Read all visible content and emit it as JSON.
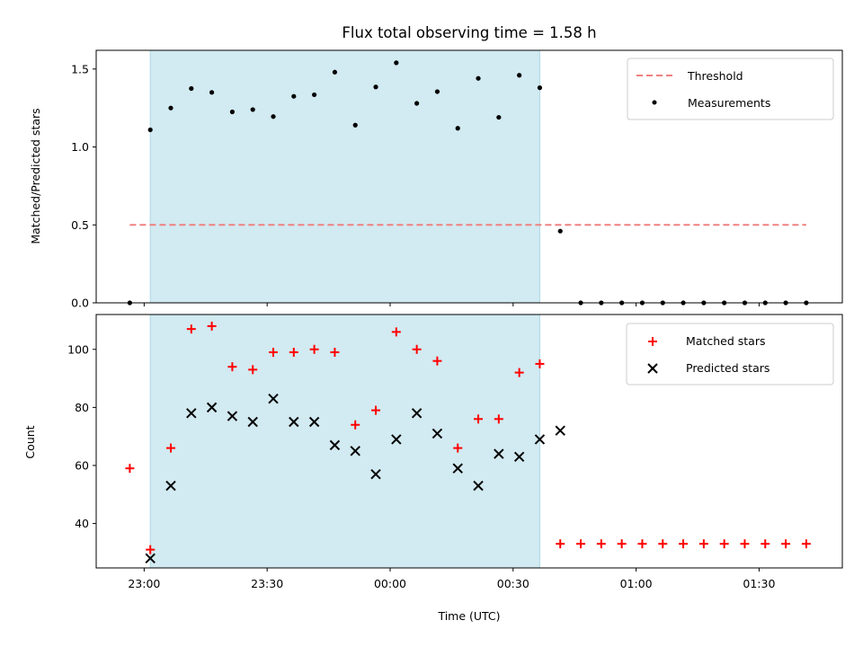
{
  "chart_data": [
    {
      "type": "scatter",
      "title": "Flux total observing time = 1.58 h",
      "xlabel": "",
      "ylabel": "Matched/Predicted stars",
      "ylim": [
        0,
        1.62
      ],
      "yticks": [
        0.0,
        0.5,
        1.0,
        1.5
      ],
      "ytick_labels": [
        "0.0",
        "0.5",
        "1.0",
        "1.5"
      ],
      "legend_position": "top-right",
      "threshold": {
        "name": "Threshold",
        "value": 0.5,
        "x_start": -3.5,
        "x_end": 161.5,
        "color": "#f08080"
      },
      "observing_window": {
        "start": 1.5,
        "end": 96.5,
        "color": "#add8e6"
      },
      "series": [
        {
          "name": "Measurements",
          "color": "#000000",
          "x": [
            -3.5,
            1.5,
            6.5,
            11.5,
            16.5,
            21.5,
            26.5,
            31.5,
            36.5,
            41.5,
            46.5,
            51.5,
            56.5,
            61.5,
            66.5,
            71.5,
            76.5,
            81.5,
            86.5,
            91.5,
            96.5,
            101.5,
            106.5,
            111.5,
            116.5,
            121.5,
            126.5,
            131.5,
            136.5,
            141.5,
            146.5,
            151.5,
            156.5,
            161.5
          ],
          "values": [
            0.0,
            1.11,
            1.25,
            1.375,
            1.35,
            1.225,
            1.24,
            1.195,
            1.325,
            1.335,
            1.48,
            1.14,
            1.385,
            1.54,
            1.28,
            1.355,
            1.12,
            1.44,
            1.19,
            1.46,
            1.38,
            0.46,
            0.0,
            0.0,
            0.0,
            0.0,
            0.0,
            0.0,
            0.0,
            0.0,
            0.0,
            0.0,
            0.0,
            0.0
          ]
        }
      ]
    },
    {
      "type": "scatter",
      "title": "",
      "xlabel": "Time (UTC)",
      "ylabel": "Count",
      "ylim": [
        24.7,
        112
      ],
      "yticks": [
        40,
        60,
        80,
        100
      ],
      "ytick_labels": [
        "40",
        "60",
        "80",
        "100"
      ],
      "xlim": [
        -11.7,
        170.3
      ],
      "xticks": [
        0,
        30,
        60,
        90,
        120,
        150
      ],
      "xtick_labels": [
        "23:00",
        "23:30",
        "00:00",
        "00:30",
        "01:00",
        "01:30"
      ],
      "legend_position": "top-right",
      "series": [
        {
          "name": "Matched stars",
          "marker": "plus",
          "color": "#ff0000",
          "x": [
            -3.5,
            1.5,
            6.5,
            11.5,
            16.5,
            21.5,
            26.5,
            31.5,
            36.5,
            41.5,
            46.5,
            51.5,
            56.5,
            61.5,
            66.5,
            71.5,
            76.5,
            81.5,
            86.5,
            91.5,
            96.5,
            101.5,
            106.5,
            111.5,
            116.5,
            121.5,
            126.5,
            131.5,
            136.5,
            141.5,
            146.5,
            151.5,
            156.5,
            161.5
          ],
          "values": [
            59,
            31,
            66,
            107,
            108,
            94,
            93,
            99,
            99,
            100,
            99,
            74,
            79,
            106,
            100,
            96,
            66,
            76,
            76,
            92,
            95,
            33,
            33,
            33,
            33,
            33,
            33,
            33,
            33,
            33,
            33,
            33,
            33,
            33
          ]
        },
        {
          "name": "Predicted stars",
          "marker": "x",
          "color": "#000000",
          "x": [
            1.5,
            6.5,
            11.5,
            16.5,
            21.5,
            26.5,
            31.5,
            36.5,
            41.5,
            46.5,
            51.5,
            56.5,
            61.5,
            66.5,
            71.5,
            76.5,
            81.5,
            86.5,
            91.5,
            96.5,
            101.5
          ],
          "values": [
            28,
            53,
            78,
            80,
            77,
            75,
            83,
            75,
            75,
            67,
            65,
            57,
            69,
            78,
            71,
            59,
            53,
            64,
            63,
            69,
            72
          ]
        }
      ]
    }
  ]
}
